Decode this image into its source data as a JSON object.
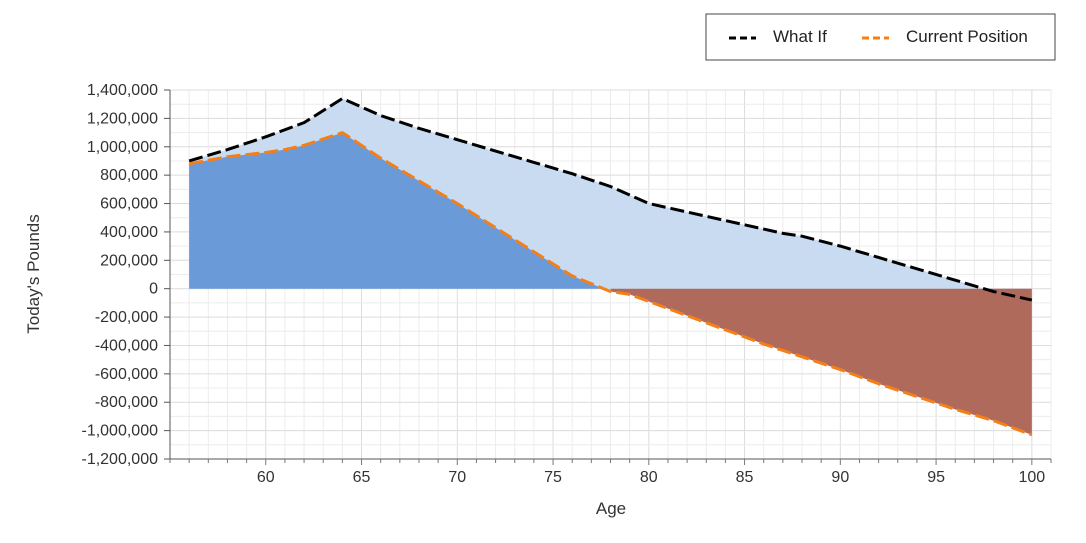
{
  "chart_data": {
    "type": "area",
    "title": "",
    "xlabel": "Age",
    "ylabel": "Today's Pounds",
    "xlim": [
      55,
      101
    ],
    "ylim": [
      -1200000,
      1400000
    ],
    "x_ticks": [
      60,
      65,
      70,
      75,
      80,
      85,
      90,
      95,
      100
    ],
    "x_tick_labels": [
      "60",
      "65",
      "70",
      "75",
      "80",
      "85",
      "90",
      "95",
      "100"
    ],
    "y_ticks": [
      1400000,
      1200000,
      1000000,
      800000,
      600000,
      400000,
      200000,
      0,
      -200000,
      -400000,
      -600000,
      -800000,
      -1000000,
      -1200000
    ],
    "y_tick_labels": [
      "1,400,000",
      "1,200,000",
      "1,000,000",
      "800,000",
      "600,000",
      "400,000",
      "200,000",
      "0",
      "-200,000",
      "-400,000",
      "-600,000",
      "-800,000",
      "-1,000,000",
      "-1,200,000"
    ],
    "grid": true,
    "legend_position": "top-right",
    "series": [
      {
        "name": "What If",
        "color": "#000000",
        "line_style": "dashed",
        "fill_color": "#c9dbf1",
        "x": [
          56,
          58,
          60,
          62,
          64,
          66,
          68,
          70,
          72,
          74,
          76,
          78,
          79,
          80,
          82,
          84,
          86,
          87,
          88,
          90,
          92,
          94,
          96,
          98,
          100
        ],
        "y": [
          900000,
          980000,
          1070000,
          1170000,
          1340000,
          1220000,
          1130000,
          1050000,
          970000,
          890000,
          810000,
          720000,
          660000,
          600000,
          540000,
          480000,
          420000,
          390000,
          370000,
          300000,
          220000,
          140000,
          60000,
          -20000,
          -80000
        ]
      },
      {
        "name": "Current Position",
        "color": "#f57f17",
        "line_style": "dashed",
        "fill_color_positive": "#6b9ad8",
        "fill_color_negative": "#b06a5c",
        "x": [
          56,
          58,
          60,
          61,
          62,
          64,
          66,
          68,
          70,
          72,
          74,
          76,
          78,
          79,
          80,
          82,
          84,
          86,
          88,
          90,
          92,
          94,
          96,
          98,
          100
        ],
        "y": [
          880000,
          930000,
          960000,
          980000,
          1010000,
          1100000,
          920000,
          760000,
          600000,
          430000,
          260000,
          90000,
          -20000,
          -40000,
          -90000,
          -190000,
          -290000,
          -390000,
          -480000,
          -570000,
          -670000,
          -760000,
          -850000,
          -930000,
          -1030000
        ]
      }
    ]
  }
}
